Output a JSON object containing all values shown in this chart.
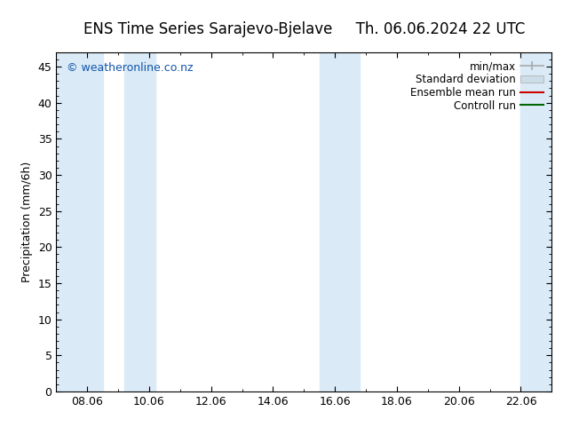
{
  "title_left": "ENS Time Series Sarajevo-Bjelave",
  "title_right": "Th. 06.06.2024 22 UTC",
  "ylabel": "Precipitation (mm/6h)",
  "copyright": "© weatheronline.co.nz",
  "ylim": [
    0,
    47
  ],
  "yticks": [
    0,
    5,
    10,
    15,
    20,
    25,
    30,
    35,
    40,
    45
  ],
  "xtick_labels": [
    "08.06",
    "10.06",
    "12.06",
    "14.06",
    "16.06",
    "18.06",
    "20.06",
    "22.06"
  ],
  "xtick_positions": [
    2,
    4,
    6,
    8,
    10,
    12,
    14,
    16
  ],
  "xmin": 1,
  "xmax": 17,
  "blue_band_color": "#daeaf7",
  "blue_bands": [
    [
      1.0,
      2.5
    ],
    [
      3.2,
      4.2
    ],
    [
      9.5,
      10.8
    ],
    [
      16.0,
      17.0
    ]
  ],
  "legend_labels": [
    "min/max",
    "Standard deviation",
    "Ensemble mean run",
    "Controll run"
  ],
  "legend_colors": [
    "#aaaaaa",
    "#bbbbbb",
    "#cc0000",
    "#006600"
  ],
  "background_color": "#ffffff",
  "plot_bg_color": "#ffffff",
  "title_fontsize": 12,
  "axis_label_fontsize": 9,
  "tick_fontsize": 9,
  "legend_fontsize": 8.5,
  "copyright_color": "#1155aa",
  "copyright_fontsize": 9
}
